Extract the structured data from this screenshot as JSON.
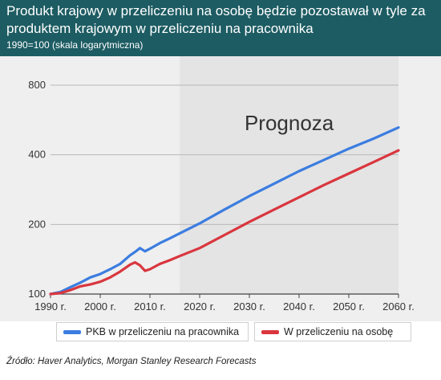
{
  "title": "Produkt krajowy w przeliczeniu na osobę będzie pozostawał w tyle za produktem krajowym w przeliczeniu na pracownika",
  "subtitle": "1990=100 (skala logarytmiczna)",
  "source": "Źródło: Haver Analytics, Morgan Stanley Research Forecasts",
  "colors": {
    "header": "#1d5c63",
    "background": "#efefef",
    "forecast_band": "#e4e4e4",
    "series_worker": "#3b7de0",
    "series_capita": "#d9363e"
  },
  "chart_data": {
    "type": "line",
    "yscale": "log",
    "ylim": [
      100,
      800
    ],
    "yticks": [
      100,
      200,
      400,
      800
    ],
    "ytick_labels": [
      "100",
      "200",
      "400",
      "800"
    ],
    "xlim": [
      1990,
      2060
    ],
    "xticks": [
      1990,
      2000,
      2010,
      2020,
      2030,
      2040,
      2050,
      2060
    ],
    "xtick_labels": [
      "1990 r.",
      "2000 r.",
      "2010 r.",
      "2020 r.",
      "2030 r.",
      "2040 r.",
      "2050 r.",
      "2060 r."
    ],
    "annotation": {
      "text": "Prognoza",
      "x_start": 2016,
      "x_end": 2060
    },
    "grid": "horizontal",
    "legend_position": "bottom",
    "series": [
      {
        "name": "PKB w przeliczeniu na pracownika",
        "color": "#3b7de0",
        "x": [
          1990,
          1992,
          1994,
          1996,
          1998,
          2000,
          2002,
          2004,
          2006,
          2007,
          2008,
          2009,
          2010,
          2012,
          2014,
          2016,
          2020,
          2025,
          2030,
          2035,
          2040,
          2045,
          2050,
          2055,
          2060
        ],
        "y": [
          100,
          102,
          107,
          112,
          118,
          122,
          128,
          135,
          147,
          152,
          158,
          153,
          157,
          166,
          174,
          183,
          202,
          232,
          265,
          300,
          340,
          380,
          425,
          470,
          525
        ]
      },
      {
        "name": "W przeliczeniu na osobę",
        "color": "#d9363e",
        "x": [
          1990,
          1992,
          1994,
          1996,
          1998,
          2000,
          2002,
          2004,
          2006,
          2007,
          2008,
          2009,
          2010,
          2012,
          2014,
          2016,
          2020,
          2025,
          2030,
          2035,
          2040,
          2045,
          2050,
          2055,
          2060
        ],
        "y": [
          100,
          101,
          104,
          108,
          110,
          113,
          118,
          125,
          134,
          137,
          133,
          126,
          128,
          135,
          140,
          146,
          158,
          180,
          205,
          232,
          262,
          296,
          332,
          372,
          418
        ]
      }
    ]
  }
}
